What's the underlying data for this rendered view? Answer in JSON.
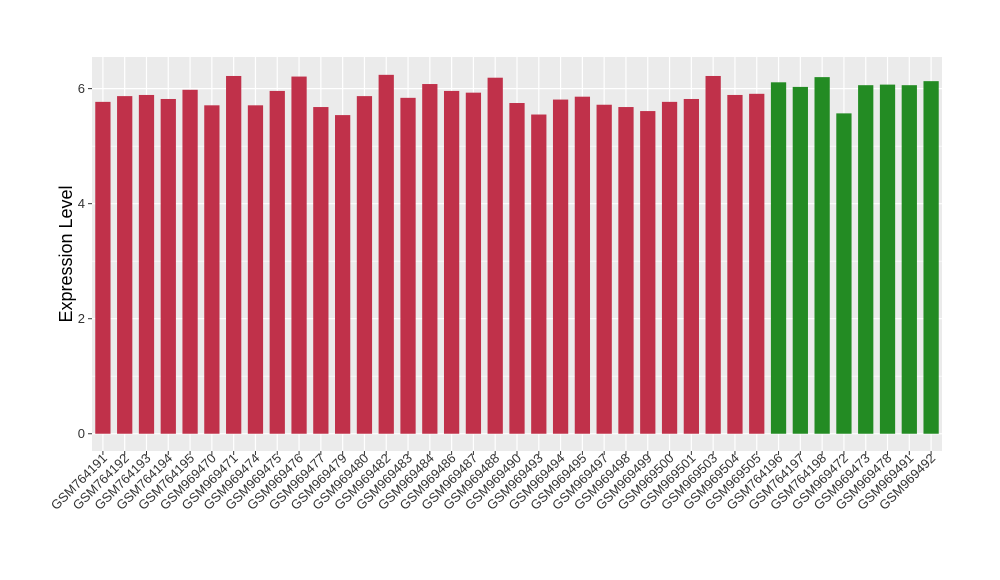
{
  "chart_data": {
    "type": "bar",
    "title": "",
    "xlabel": "",
    "ylabel": "Expression Level",
    "ylim": [
      -0.3,
      6.55
    ],
    "yticks": [
      0,
      2,
      4,
      6
    ],
    "grid": true,
    "legend": "none",
    "colors": {
      "group1": "#c0314a",
      "group2": "#238b23",
      "panel": "#ebebeb",
      "grid": "#ffffff"
    },
    "categories": [
      "GSM764191",
      "GSM764192",
      "GSM764193",
      "GSM764194",
      "GSM764195",
      "GSM969470",
      "GSM969471",
      "GSM969474",
      "GSM969475",
      "GSM969476",
      "GSM969477",
      "GSM969479",
      "GSM969480",
      "GSM969482",
      "GSM969483",
      "GSM969484",
      "GSM969486",
      "GSM969487",
      "GSM969488",
      "GSM969490",
      "GSM969493",
      "GSM969494",
      "GSM969495",
      "GSM969497",
      "GSM969498",
      "GSM969499",
      "GSM969500",
      "GSM969501",
      "GSM969503",
      "GSM969504",
      "GSM969505",
      "GSM764196",
      "GSM764197",
      "GSM764198",
      "GSM969472",
      "GSM969473",
      "GSM969478",
      "GSM969491",
      "GSM969492"
    ],
    "values": [
      5.77,
      5.87,
      5.89,
      5.82,
      5.98,
      5.71,
      6.22,
      5.71,
      5.96,
      6.21,
      5.68,
      5.54,
      5.87,
      6.24,
      5.84,
      6.08,
      5.96,
      5.93,
      6.19,
      5.75,
      5.55,
      5.81,
      5.86,
      5.72,
      5.68,
      5.61,
      5.77,
      5.82,
      6.22,
      5.89,
      5.91,
      6.11,
      6.03,
      6.2,
      5.57,
      6.06,
      6.07,
      6.06,
      6.13
    ],
    "groups": [
      1,
      1,
      1,
      1,
      1,
      1,
      1,
      1,
      1,
      1,
      1,
      1,
      1,
      1,
      1,
      1,
      1,
      1,
      1,
      1,
      1,
      1,
      1,
      1,
      1,
      1,
      1,
      1,
      1,
      1,
      1,
      2,
      2,
      2,
      2,
      2,
      2,
      2,
      2
    ]
  }
}
